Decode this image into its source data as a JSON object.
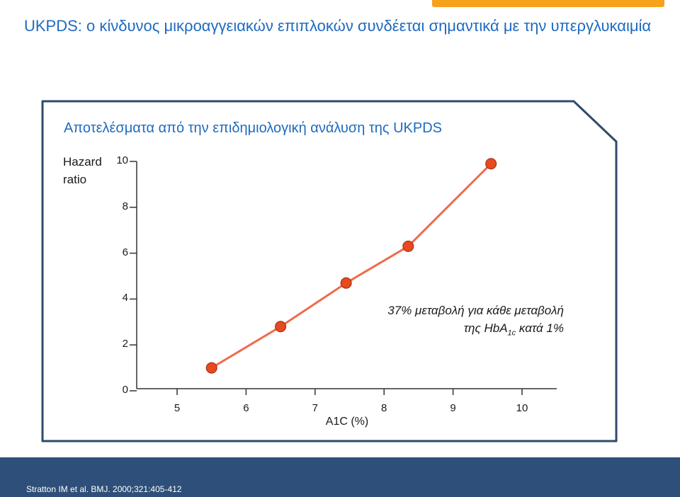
{
  "slide": {
    "title": "UKPDS: ο κίνδυνος μικροαγγειακών επιπλοκών συνδέεται σημαντικά με την υπεργλυκαιμία",
    "reference": "Stratton IM et al. BMJ. 2000;321:405-412"
  },
  "colors": {
    "title": "#1e6bbf",
    "accent": "#f6a21b",
    "footer": "#2e4f79",
    "line": "#ef6b4a",
    "marker": "#e64a1e",
    "panel_border": "#2f4a6b"
  },
  "chart_data": {
    "type": "line",
    "title": "Αποτελέσματα από την επιδημιολογική ανάλυση της UKPDS",
    "ylabel": "Hazard ratio",
    "xlabel": "A1C (%)",
    "ylim": [
      0,
      10
    ],
    "xlim": [
      5,
      10
    ],
    "yticks": [
      10,
      8,
      6,
      4,
      2,
      0
    ],
    "xticks": [
      5,
      6,
      7,
      8,
      9,
      10
    ],
    "x": [
      5.5,
      6.5,
      7.45,
      8.35,
      9.55
    ],
    "y": [
      1.0,
      2.8,
      4.7,
      6.3,
      9.9
    ],
    "grid": false,
    "annotation": {
      "line1": "37% μεταβολή για κάθε μεταβολή",
      "line2_prefix": "της HbA",
      "line2_sub": "1c",
      "line2_suffix": " κατά 1%"
    }
  }
}
